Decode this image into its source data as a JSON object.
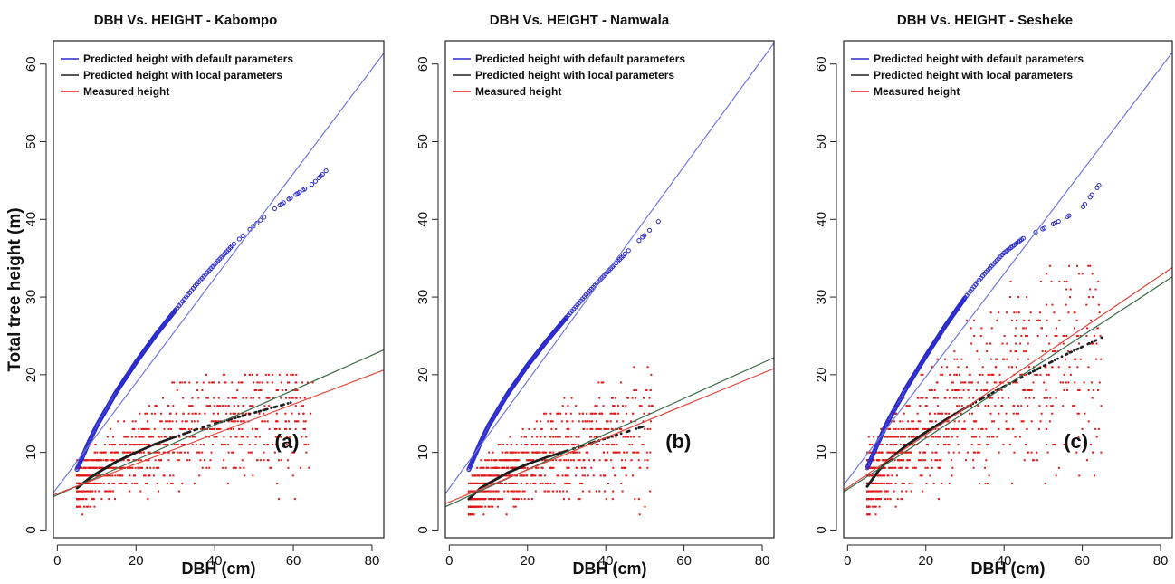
{
  "colors": {
    "default": "#2a2acc",
    "local": "#1e1e1e",
    "measured": "#e01818",
    "default_line": "#6f78e0",
    "local_line": "#3d6b4a",
    "measured_line": "#e0473f"
  },
  "chart_data": [
    {
      "type": "scatter",
      "title": "DBH Vs. HEIGHT - Kabompo",
      "xlabel": "DBH (cm)",
      "ylabel": "Total tree height (m)",
      "xlim": [
        -1,
        83
      ],
      "ylim": [
        -1,
        63
      ],
      "x_ticks": [
        0,
        20,
        40,
        60,
        80
      ],
      "y_ticks": [
        0,
        10,
        20,
        30,
        40,
        50,
        60
      ],
      "grid": false,
      "legend_position": "top-left",
      "panel_label": "(a)",
      "legend": [
        {
          "label": "Predicted height with default parameters",
          "color": "#2a2acc"
        },
        {
          "label": "Predicted height with local parameters",
          "color": "#1e1e1e"
        },
        {
          "label": "Measured height",
          "color": "#e01818"
        }
      ],
      "series": [
        {
          "name": "Predicted height with default parameters",
          "kind": "curve",
          "x": [
            5,
            8,
            10,
            15,
            20,
            25,
            30,
            35,
            40,
            45,
            50,
            55,
            60,
            65,
            70
          ],
          "y": [
            7.8,
            11.3,
            13.4,
            17.8,
            21.6,
            25.1,
            28.3,
            31.4,
            34.2,
            36.9,
            39.2,
            41.3,
            43.0,
            44.6,
            47.1
          ]
        },
        {
          "name": "Predicted height with local parameters",
          "kind": "curve",
          "x": [
            5,
            8,
            10,
            15,
            20,
            25,
            30,
            35,
            40,
            45,
            50,
            55,
            60
          ],
          "y": [
            5.4,
            6.6,
            7.3,
            8.8,
            10.0,
            11.1,
            12.0,
            12.9,
            13.7,
            14.4,
            15.1,
            15.8,
            16.5
          ]
        },
        {
          "name": "Measured height",
          "kind": "scatter",
          "x_range": [
            5,
            65
          ],
          "y_range": [
            2,
            20
          ],
          "approx_center_curve": "local"
        },
        {
          "name": "Predicted height with default parameters",
          "kind": "fit-line",
          "x": [
            -1,
            83
          ],
          "y": [
            4.8,
            61.4
          ]
        },
        {
          "name": "Predicted height with local parameters",
          "kind": "fit-line",
          "x": [
            -1,
            83
          ],
          "y": [
            4.3,
            23.2
          ]
        },
        {
          "name": "Measured height",
          "kind": "fit-line",
          "x": [
            -1,
            83
          ],
          "y": [
            4.5,
            20.6
          ]
        }
      ]
    },
    {
      "type": "scatter",
      "title": "DBH Vs. HEIGHT - Namwala",
      "xlabel": "DBH (cm)",
      "ylabel": "",
      "xlim": [
        -1,
        83
      ],
      "ylim": [
        -1,
        63
      ],
      "x_ticks": [
        0,
        20,
        40,
        60,
        80
      ],
      "y_ticks": [
        0,
        10,
        20,
        30,
        40,
        50,
        60
      ],
      "grid": false,
      "legend_position": "top-left",
      "panel_label": "(b)",
      "legend": [
        {
          "label": "Predicted height with default parameters",
          "color": "#2a2acc"
        },
        {
          "label": "Predicted height with local parameters",
          "color": "#1e1e1e"
        },
        {
          "label": "Measured height",
          "color": "#e01818"
        }
      ],
      "series": [
        {
          "name": "Predicted height with default parameters",
          "kind": "curve",
          "x": [
            5,
            8,
            10,
            15,
            20,
            25,
            30,
            35,
            40,
            45,
            50,
            54
          ],
          "y": [
            7.8,
            11.3,
            13.4,
            17.6,
            21.2,
            24.4,
            27.4,
            30.3,
            33.0,
            35.6,
            38.0,
            40.0
          ]
        },
        {
          "name": "Predicted height with local parameters",
          "kind": "curve",
          "x": [
            5,
            8,
            10,
            15,
            20,
            25,
            30,
            35,
            40,
            45,
            50
          ],
          "y": [
            4.0,
            5.4,
            6.0,
            7.4,
            8.5,
            9.4,
            10.2,
            11.0,
            11.8,
            12.6,
            13.4
          ]
        },
        {
          "name": "Measured height",
          "kind": "scatter",
          "x_range": [
            5,
            52
          ],
          "y_range": [
            2,
            21
          ],
          "approx_center_curve": "local"
        },
        {
          "name": "Predicted height with default parameters",
          "kind": "fit-line",
          "x": [
            -1,
            83
          ],
          "y": [
            4.7,
            62.7
          ]
        },
        {
          "name": "Predicted height with local parameters",
          "kind": "fit-line",
          "x": [
            -1,
            83
          ],
          "y": [
            3.0,
            22.2
          ]
        },
        {
          "name": "Measured height",
          "kind": "fit-line",
          "x": [
            -1,
            83
          ],
          "y": [
            3.4,
            20.8
          ]
        }
      ]
    },
    {
      "type": "scatter",
      "title": "DBH Vs. HEIGHT - Sesheke",
      "xlabel": "DBH (cm)",
      "ylabel": "",
      "xlim": [
        -1,
        83
      ],
      "ylim": [
        -1,
        63
      ],
      "x_ticks": [
        0,
        20,
        40,
        60,
        80
      ],
      "y_ticks": [
        0,
        10,
        20,
        30,
        40,
        50,
        60
      ],
      "grid": false,
      "legend_position": "top-left",
      "panel_label": "(c)",
      "legend": [
        {
          "label": "Predicted height with default parameters",
          "color": "#2a2acc"
        },
        {
          "label": "Predicted height with local parameters",
          "color": "#1e1e1e"
        },
        {
          "label": "Measured height",
          "color": "#e01818"
        }
      ],
      "series": [
        {
          "name": "Predicted height with default parameters",
          "kind": "curve",
          "x": [
            5,
            8,
            10,
            15,
            20,
            25,
            30,
            35,
            40,
            45,
            50,
            55,
            60,
            65
          ],
          "y": [
            8.0,
            11.5,
            13.7,
            18.3,
            22.4,
            26.3,
            29.9,
            33.0,
            35.7,
            37.6,
            38.8,
            40.0,
            41.5,
            44.9
          ]
        },
        {
          "name": "Predicted height with local parameters",
          "kind": "curve",
          "x": [
            5,
            8,
            10,
            15,
            20,
            25,
            30,
            35,
            40,
            45,
            50,
            55,
            60,
            65
          ],
          "y": [
            5.6,
            7.7,
            8.8,
            10.9,
            12.6,
            14.2,
            15.7,
            17.1,
            18.5,
            19.8,
            21.1,
            22.4,
            23.6,
            24.8
          ]
        },
        {
          "name": "Measured height",
          "kind": "scatter",
          "x_range": [
            5,
            65
          ],
          "y_range": [
            2,
            34
          ],
          "approx_center_curve": "local"
        },
        {
          "name": "Predicted height with default parameters",
          "kind": "fit-line",
          "x": [
            -1,
            83
          ],
          "y": [
            5.8,
            61.5
          ]
        },
        {
          "name": "Predicted height with local parameters",
          "kind": "fit-line",
          "x": [
            -1,
            83
          ],
          "y": [
            4.9,
            32.6
          ]
        },
        {
          "name": "Measured height",
          "kind": "fit-line",
          "x": [
            -1,
            83
          ],
          "y": [
            5.1,
            33.8
          ]
        }
      ]
    }
  ]
}
